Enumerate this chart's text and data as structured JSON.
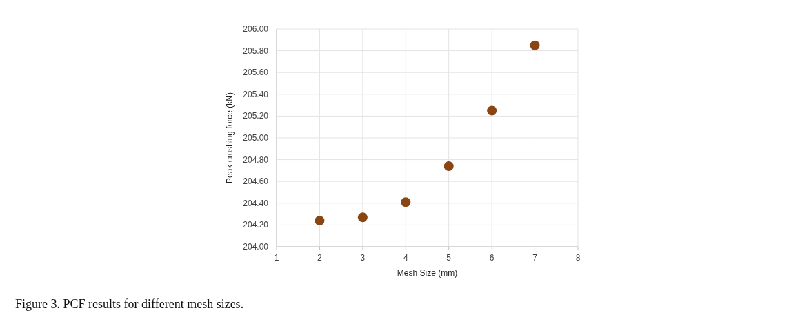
{
  "chart_data": {
    "type": "scatter",
    "xlabel": "Mesh Size (mm)",
    "ylabel": "Peak crushing force (kN)",
    "x": [
      2,
      3,
      4,
      5,
      6,
      7
    ],
    "series": [
      {
        "color": "#8b4513",
        "values": [
          204.24,
          204.27,
          204.41,
          204.74,
          205.25,
          205.85
        ]
      }
    ],
    "xlim": [
      1,
      8
    ],
    "xticks": [
      1,
      2,
      3,
      4,
      5,
      6,
      7,
      8
    ],
    "ylim": [
      204,
      206
    ],
    "yticks": [
      {
        "value": 204,
        "label": "204.00"
      },
      {
        "value": 204.2,
        "label": "204.20"
      },
      {
        "value": 204.4,
        "label": "204.40"
      },
      {
        "value": 204.6,
        "label": "204.60"
      },
      {
        "value": 204.8,
        "label": "204.80"
      },
      {
        "value": 205,
        "label": "205.00"
      },
      {
        "value": 205.2,
        "label": "205.20"
      },
      {
        "value": 205.4,
        "label": "205.40"
      },
      {
        "value": 205.6,
        "label": "205.60"
      },
      {
        "value": 205.8,
        "label": "205.80"
      },
      {
        "value": 206,
        "label": "206.00"
      }
    ],
    "grid": true,
    "marker": "circle",
    "annotations": [
      "Figure 3. PCF results for different mesh sizes."
    ]
  }
}
